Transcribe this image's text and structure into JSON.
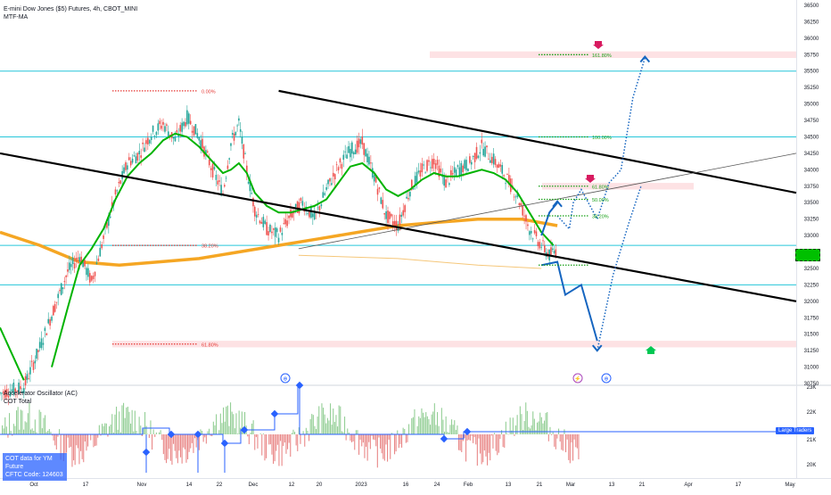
{
  "header": {
    "title": "E-mini Dow Jones ($5) Futures, 4h, CBOT_MINI",
    "indicator": "MTF-MA"
  },
  "sub_panel": {
    "indicator1": "Accelerator Oscillator (AC)",
    "indicator2": "COT Total",
    "cot_line1": "COT data for YM Future",
    "cot_line2": "CFTC Code: 124603",
    "large_traders_label": "Large Traders",
    "badges": [
      "⊕",
      "⚡",
      "⊕"
    ]
  },
  "fib_labels": {
    "f0": "0.00%",
    "f382": "38.20%",
    "f618": "61.80%",
    "f100": "100.00%",
    "f1618": "161.80%",
    "r618": "61.80%",
    "r50": "50.00%",
    "r382": "38.20%"
  },
  "colors": {
    "ma_green": "#00b300",
    "ma_orange": "#f5a623",
    "projection_blue": "#1565c0",
    "fib_green": "#18a018",
    "fib_red": "#e53935",
    "level_cyan": "#26c6da"
  },
  "chart_data": {
    "type": "candlestick",
    "title": "E-mini Dow Jones ($5) Futures, 4h, CBOT_MINI",
    "y_axis": {
      "range": [
        30750,
        36500
      ],
      "ticks": [
        "36500",
        "36250",
        "36000",
        "35750",
        "35500",
        "35250",
        "35000",
        "34750",
        "34500",
        "34250",
        "34000",
        "33750",
        "33500",
        "33250",
        "33000",
        "32750",
        "32500",
        "32250",
        "32000",
        "31750",
        "31500",
        "31250",
        "31000",
        "30750"
      ]
    },
    "x_axis": {
      "ticks": [
        "Oct",
        "17",
        "Nov",
        "14",
        "22",
        "Dec",
        "12",
        "20",
        "2023",
        "16",
        "24",
        "Feb",
        "13",
        "21",
        "Mar",
        "13",
        "21",
        "Apr",
        "17",
        "May"
      ]
    },
    "sub_axis": {
      "ticks": [
        "23K",
        "22K",
        "21K",
        "20K"
      ]
    },
    "horizontal_levels": [
      35500,
      34500,
      32850,
      32250
    ],
    "price_path": [
      [
        0,
        30600
      ],
      [
        12,
        30700
      ],
      [
        20,
        31300
      ],
      [
        26,
        31800
      ],
      [
        34,
        32450
      ],
      [
        40,
        32700
      ],
      [
        46,
        32300
      ],
      [
        52,
        32950
      ],
      [
        58,
        33600
      ],
      [
        64,
        34100
      ],
      [
        70,
        34250
      ],
      [
        76,
        34550
      ],
      [
        82,
        34700
      ],
      [
        88,
        34450
      ],
      [
        94,
        34800
      ],
      [
        100,
        34500
      ],
      [
        106,
        34050
      ],
      [
        112,
        33650
      ],
      [
        116,
        34400
      ],
      [
        120,
        34700
      ],
      [
        124,
        34000
      ],
      [
        128,
        33400
      ],
      [
        134,
        33100
      ],
      [
        140,
        33000
      ],
      [
        146,
        33300
      ],
      [
        152,
        33500
      ],
      [
        158,
        33250
      ],
      [
        164,
        33700
      ],
      [
        170,
        34050
      ],
      [
        176,
        34300
      ],
      [
        182,
        34400
      ],
      [
        188,
        33900
      ],
      [
        194,
        33300
      ],
      [
        200,
        33150
      ],
      [
        206,
        33700
      ],
      [
        212,
        34000
      ],
      [
        218,
        34150
      ],
      [
        224,
        33800
      ],
      [
        230,
        34000
      ],
      [
        236,
        34100
      ],
      [
        242,
        34350
      ],
      [
        248,
        34150
      ],
      [
        254,
        33900
      ],
      [
        260,
        33600
      ],
      [
        266,
        33100
      ],
      [
        272,
        32850
      ],
      [
        276,
        32700
      ],
      [
        280,
        32800
      ]
    ],
    "ma_green": [
      [
        26,
        31000
      ],
      [
        34,
        31900
      ],
      [
        40,
        32550
      ],
      [
        46,
        32800
      ],
      [
        52,
        33100
      ],
      [
        58,
        33550
      ],
      [
        64,
        33900
      ],
      [
        70,
        34100
      ],
      [
        76,
        34250
      ],
      [
        82,
        34450
      ],
      [
        88,
        34550
      ],
      [
        94,
        34500
      ],
      [
        100,
        34350
      ],
      [
        106,
        34150
      ],
      [
        112,
        33950
      ],
      [
        116,
        34000
      ],
      [
        120,
        34100
      ],
      [
        124,
        33950
      ],
      [
        128,
        33650
      ],
      [
        134,
        33450
      ],
      [
        140,
        33350
      ],
      [
        146,
        33350
      ],
      [
        152,
        33400
      ],
      [
        158,
        33450
      ],
      [
        164,
        33550
      ],
      [
        170,
        33800
      ],
      [
        176,
        34050
      ],
      [
        182,
        34100
      ],
      [
        188,
        33950
      ],
      [
        194,
        33700
      ],
      [
        200,
        33600
      ],
      [
        206,
        33700
      ],
      [
        212,
        33850
      ],
      [
        218,
        33950
      ],
      [
        224,
        33900
      ],
      [
        230,
        33900
      ],
      [
        236,
        33950
      ],
      [
        242,
        34000
      ],
      [
        248,
        33950
      ],
      [
        254,
        33850
      ],
      [
        260,
        33650
      ],
      [
        266,
        33350
      ],
      [
        272,
        33050
      ],
      [
        278,
        32850
      ]
    ],
    "ma_orange": [
      [
        0,
        33050
      ],
      [
        20,
        32850
      ],
      [
        40,
        32600
      ],
      [
        60,
        32550
      ],
      [
        80,
        32600
      ],
      [
        100,
        32650
      ],
      [
        120,
        32750
      ],
      [
        140,
        32850
      ],
      [
        160,
        32950
      ],
      [
        180,
        33050
      ],
      [
        200,
        33150
      ],
      [
        220,
        33200
      ],
      [
        240,
        33250
      ],
      [
        262,
        33250
      ],
      [
        280,
        33150
      ]
    ],
    "projection_paths": [
      [
        [
          272,
          32550
        ],
        [
          280,
          32600
        ],
        [
          284,
          32100
        ],
        [
          292,
          32250
        ],
        [
          300,
          31400
        ]
      ],
      [
        [
          280,
          33300
        ],
        [
          286,
          33100
        ],
        [
          288,
          33500
        ],
        [
          292,
          33700
        ],
        [
          300,
          33250
        ],
        [
          306,
          33800
        ],
        [
          312,
          34000
        ],
        [
          318,
          35100
        ],
        [
          324,
          35700
        ]
      ],
      [
        [
          300,
          31250
        ],
        [
          308,
          32400
        ],
        [
          316,
          33200
        ],
        [
          322,
          33750
        ]
      ]
    ],
    "trend_lines": [
      {
        "from": [
          0,
          34250
        ],
        "to": [
          400,
          32000
        ],
        "color": "#000000"
      },
      {
        "from": [
          140,
          35200
        ],
        "to": [
          400,
          33650
        ],
        "color": "#000000"
      },
      {
        "from": [
          150,
          32800
        ],
        "to": [
          400,
          34250
        ],
        "color": "#555555"
      }
    ],
    "fib_levels": [
      {
        "label": "0.00%",
        "value": 35200,
        "color": "red"
      },
      {
        "label": "38.20%",
        "value": 32850,
        "color": "red"
      },
      {
        "label": "61.80%",
        "value": 31350,
        "color": "red"
      },
      {
        "label": "100.00%",
        "value": 34500,
        "color": "green"
      },
      {
        "label": "161.80%",
        "value": 35750,
        "color": "green"
      },
      {
        "label": "61.80%",
        "value": 33750,
        "color": "green"
      },
      {
        "label": "50.00%",
        "value": 33550,
        "color": "green"
      },
      {
        "label": "38.20%",
        "value": 33300,
        "color": "green"
      }
    ]
  }
}
